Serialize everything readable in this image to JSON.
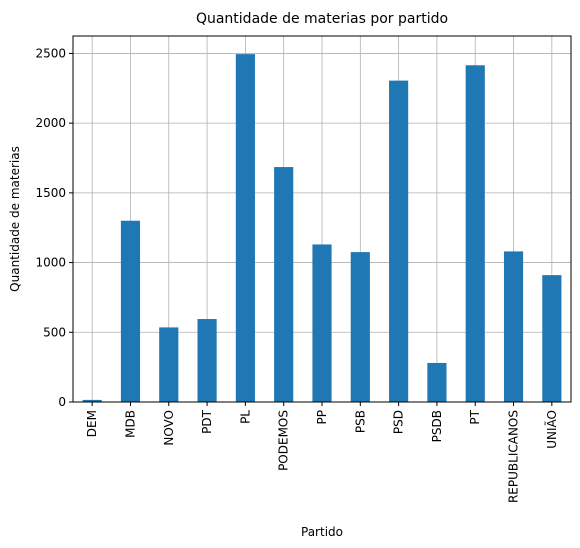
{
  "chart_data": {
    "type": "bar",
    "title": "Quantidade de materias por partido",
    "xlabel": "Partido",
    "ylabel": "Quantidade de materias",
    "categories": [
      "DEM",
      "MDB",
      "NOVO",
      "PDT",
      "PL",
      "PODEMOS",
      "PP",
      "PSB",
      "PSD",
      "PSDB",
      "PT",
      "REPUBLICANOS",
      "UNIÃO"
    ],
    "values": [
      15,
      1300,
      535,
      595,
      2495,
      1685,
      1130,
      1075,
      2305,
      280,
      2415,
      1080,
      910
    ],
    "ylim": [
      0,
      2625
    ],
    "yticks": [
      0,
      500,
      1000,
      1500,
      2000,
      2500
    ],
    "grid": true,
    "bar_color": "#1f77b4"
  }
}
